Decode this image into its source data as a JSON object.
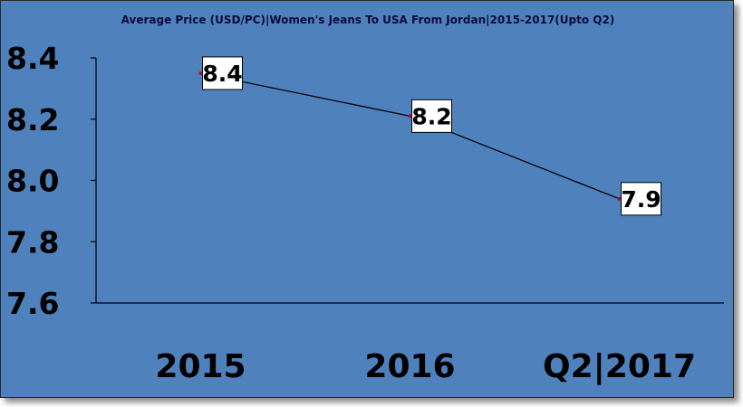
{
  "chart_data": {
    "type": "line",
    "title": "Average Price (USD/PC)|Women's Jeans To USA From Jordan|2015-2017(Upto Q2)",
    "categories": [
      "2015",
      "2016",
      "Q2|2017"
    ],
    "series": [
      {
        "values": [
          8.35,
          8.21,
          7.94
        ],
        "data_labels": [
          "8.4",
          "8.2",
          "7.9"
        ]
      }
    ],
    "yticks": [
      "7.6",
      "7.8",
      "8.0",
      "8.2",
      "8.4"
    ],
    "ylim": [
      7.6,
      8.4
    ],
    "xlabel": "",
    "ylabel": "",
    "grid": false,
    "legend": "none",
    "colors": {
      "background": "#4f81bd",
      "line": "#000000",
      "marker": "#c0003a",
      "label_box": "#ffffff"
    }
  }
}
